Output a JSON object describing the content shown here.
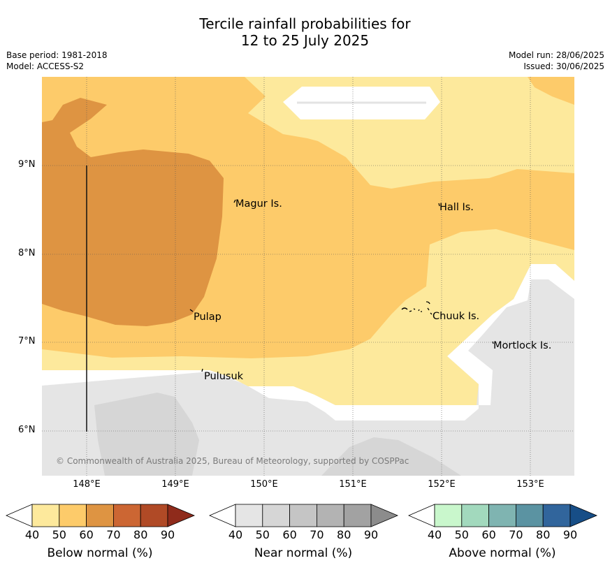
{
  "title": {
    "line1": "Tercile rainfall probabilities for",
    "line2": "12 to 25 July 2025"
  },
  "meta": {
    "base_period": "Base period: 1981-2018",
    "model": "Model: ACCESS-S2",
    "model_run": "Model run: 28/06/2025",
    "issued": "Issued: 30/06/2025"
  },
  "map": {
    "lat_labels": [
      "9°N",
      "8°N",
      "7°N",
      "6°N"
    ],
    "lon_labels": [
      "148°E",
      "149°E",
      "150°E",
      "151°E",
      "152°E",
      "153°E"
    ],
    "places": [
      "Magur Is.",
      "Hall Is.",
      "Pulap",
      "Chuuk Is.",
      "Mortlock Is.",
      "Pulusuk"
    ],
    "copyright": "© Commonwealth of Australia 2025, Bureau of Meteorology, supported by COSPPac",
    "colors": {
      "below_50": "#fde99c",
      "below_60": "#fdcb6a",
      "below_70": "#de9442",
      "near_50": "#e5e5e5",
      "near_60": "#d6d6d6"
    }
  },
  "colorbars": [
    {
      "label": "Below normal (%)",
      "ticks": [
        "40",
        "50",
        "60",
        "70",
        "80",
        "90"
      ],
      "colors": [
        "#fde99c",
        "#fdcb6a",
        "#de9442",
        "#cc6633",
        "#b04a26",
        "#8f2b1b"
      ]
    },
    {
      "label": "Near normal (%)",
      "ticks": [
        "40",
        "50",
        "60",
        "70",
        "80",
        "90"
      ],
      "colors": [
        "#e5e5e5",
        "#d6d6d6",
        "#c5c5c5",
        "#b3b3b3",
        "#a2a2a2",
        "#8c8c8c"
      ]
    },
    {
      "label": "Above normal (%)",
      "ticks": [
        "40",
        "50",
        "60",
        "70",
        "80",
        "90"
      ],
      "colors": [
        "#c9f7cc",
        "#a2d9bd",
        "#7fb4b1",
        "#5b93a2",
        "#31659c",
        "#174e87"
      ]
    }
  ]
}
